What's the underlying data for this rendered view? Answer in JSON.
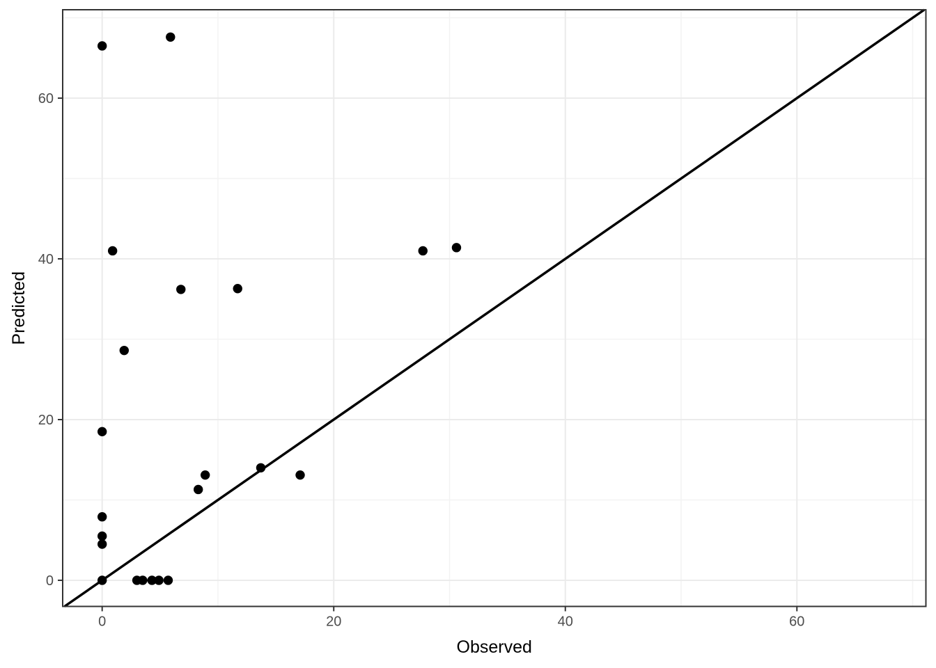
{
  "chart_data": {
    "type": "scatter",
    "title": "",
    "xlabel": "Observed",
    "ylabel": "Predicted",
    "legend_position": "none",
    "grid": true,
    "xlim": [
      -3.41,
      71.14
    ],
    "ylim": [
      -3.25,
      71.0
    ],
    "x_ticks": [
      0,
      20,
      40,
      60
    ],
    "y_ticks": [
      0,
      20,
      40,
      60
    ],
    "x_minor_ticks": [
      10,
      30,
      50,
      70
    ],
    "y_minor_ticks": [
      10,
      30,
      50,
      70
    ],
    "identity_line": {
      "slope": 1,
      "intercept": 0
    },
    "points": [
      [
        0,
        66.5
      ],
      [
        5.9,
        67.6
      ],
      [
        0.9,
        41.0
      ],
      [
        1.9,
        28.6
      ],
      [
        6.8,
        36.2
      ],
      [
        11.7,
        36.3
      ],
      [
        27.7,
        41.0
      ],
      [
        30.6,
        41.4
      ],
      [
        0,
        18.5
      ],
      [
        0,
        7.9
      ],
      [
        0,
        5.5
      ],
      [
        0,
        4.5
      ],
      [
        0,
        0
      ],
      [
        3.0,
        0
      ],
      [
        3.5,
        0
      ],
      [
        4.3,
        0
      ],
      [
        4.9,
        0
      ],
      [
        5.7,
        0
      ],
      [
        8.3,
        11.3
      ],
      [
        8.9,
        13.1
      ],
      [
        13.7,
        14.0
      ],
      [
        17.1,
        13.1
      ]
    ],
    "colors": {
      "point": "#000000",
      "identity_line": "#000000",
      "grid_major": "#ebebeb",
      "grid_minor": "#f3f3f3",
      "panel_border": "#333333",
      "tick_mark": "#333333",
      "tick_label": "#4d4d4d",
      "axis_title": "#000000",
      "panel_background": "#ffffff"
    }
  }
}
